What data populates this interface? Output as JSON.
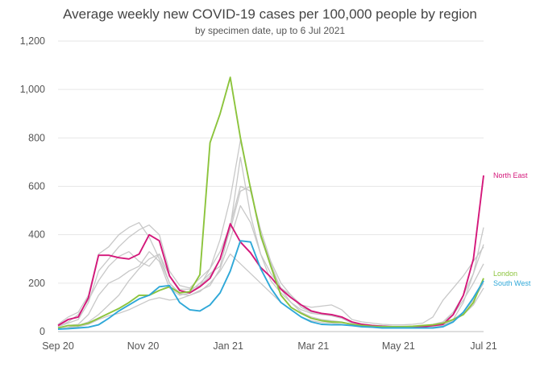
{
  "chart_data": {
    "type": "line",
    "title": "Average weekly new COVID-19 cases per 100,000 people by region",
    "subtitle": "by specimen date, up to 6 Jul 2021",
    "xlabel": "",
    "ylabel": "",
    "ylim": [
      0,
      1200
    ],
    "yticks": [
      "0",
      "200",
      "400",
      "600",
      "800",
      "1,000",
      "1,200"
    ],
    "xticks": [
      "Sep 20",
      "Nov 20",
      "Jan 21",
      "Mar 21",
      "May 21",
      "Jul 21"
    ],
    "x_range_weeks": [
      0,
      42
    ],
    "grid": "horizontal",
    "colors": {
      "highlight_north_east": "#d4177a",
      "highlight_london": "#8cc43c",
      "highlight_south_west": "#2fa8d8",
      "other_regions": "#c8c8c8",
      "grid": "#e6e6e6"
    },
    "series": [
      {
        "name": "North East",
        "highlight": true,
        "label_y": 645,
        "values": [
          25,
          50,
          60,
          140,
          315,
          315,
          305,
          300,
          320,
          400,
          375,
          230,
          170,
          160,
          185,
          220,
          300,
          445,
          370,
          325,
          265,
          225,
          175,
          140,
          110,
          85,
          75,
          70,
          60,
          40,
          30,
          25,
          22,
          20,
          20,
          20,
          20,
          25,
          30,
          70,
          150,
          300,
          645
        ]
      },
      {
        "name": "London",
        "highlight": true,
        "label_y": 240,
        "values": [
          15,
          25,
          25,
          35,
          55,
          75,
          95,
          120,
          150,
          150,
          170,
          185,
          160,
          165,
          235,
          780,
          900,
          1050,
          800,
          590,
          400,
          270,
          150,
          100,
          75,
          55,
          45,
          40,
          38,
          30,
          25,
          22,
          20,
          20,
          20,
          22,
          25,
          28,
          35,
          50,
          70,
          120,
          220
        ]
      },
      {
        "name": "South West",
        "highlight": true,
        "label_y": 200,
        "values": [
          10,
          12,
          15,
          18,
          28,
          55,
          85,
          110,
          135,
          150,
          185,
          190,
          120,
          90,
          85,
          110,
          160,
          250,
          375,
          370,
          260,
          180,
          120,
          90,
          60,
          40,
          30,
          28,
          28,
          25,
          20,
          18,
          15,
          15,
          15,
          15,
          15,
          15,
          20,
          40,
          80,
          140,
          210
        ]
      },
      {
        "name": "",
        "values": [
          20,
          40,
          70,
          130,
          210,
          270,
          310,
          330,
          290,
          270,
          320,
          200,
          160,
          165,
          200,
          240,
          270,
          430,
          720,
          480,
          320,
          210,
          160,
          120,
          90,
          75,
          70,
          65,
          60,
          35,
          25,
          20,
          18,
          18,
          18,
          18,
          20,
          22,
          28,
          50,
          120,
          240,
          430
        ]
      },
      {
        "name": "",
        "values": [
          15,
          25,
          30,
          70,
          150,
          200,
          220,
          250,
          270,
          330,
          290,
          180,
          150,
          160,
          190,
          260,
          380,
          550,
          790,
          590,
          390,
          270,
          180,
          150,
          100,
          80,
          75,
          70,
          60,
          40,
          30,
          25,
          25,
          22,
          22,
          22,
          22,
          28,
          40,
          80,
          150,
          240,
          360
        ]
      },
      {
        "name": "",
        "values": [
          20,
          35,
          50,
          120,
          250,
          300,
          350,
          390,
          420,
          440,
          400,
          250,
          190,
          180,
          220,
          260,
          330,
          440,
          600,
          580,
          420,
          290,
          200,
          150,
          100,
          85,
          75,
          65,
          55,
          35,
          28,
          25,
          22,
          20,
          20,
          20,
          22,
          30,
          40,
          70,
          130,
          200,
          280
        ]
      },
      {
        "name": "",
        "values": [
          30,
          60,
          80,
          150,
          320,
          350,
          400,
          430,
          450,
          390,
          300,
          200,
          155,
          150,
          170,
          190,
          260,
          380,
          520,
          450,
          320,
          240,
          180,
          150,
          110,
          100,
          105,
          110,
          90,
          50,
          40,
          35,
          30,
          28,
          28,
          30,
          35,
          60,
          130,
          180,
          230,
          290,
          350
        ]
      },
      {
        "name": "",
        "values": [
          10,
          18,
          25,
          40,
          70,
          110,
          150,
          210,
          260,
          300,
          320,
          230,
          175,
          175,
          190,
          230,
          300,
          420,
          580,
          600,
          400,
          280,
          175,
          120,
          80,
          60,
          50,
          45,
          40,
          30,
          25,
          22,
          20,
          20,
          20,
          20,
          22,
          25,
          30,
          50,
          80,
          130,
          200
        ]
      },
      {
        "name": "",
        "values": [
          10,
          15,
          20,
          30,
          50,
          65,
          75,
          90,
          110,
          130,
          140,
          130,
          135,
          150,
          165,
          200,
          250,
          320,
          280,
          240,
          200,
          160,
          120,
          90,
          60,
          45,
          38,
          35,
          30,
          25,
          20,
          18,
          15,
          15,
          15,
          15,
          15,
          18,
          25,
          45,
          70,
          110,
          180
        ]
      }
    ]
  }
}
